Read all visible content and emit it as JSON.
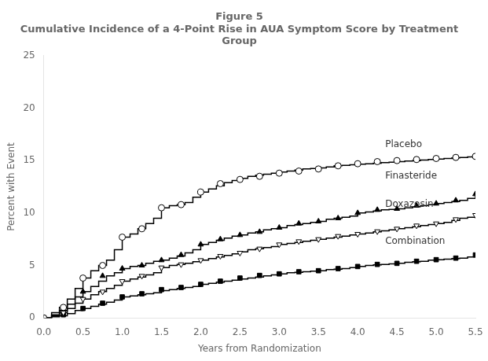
{
  "chart_data": {
    "type": "step",
    "title": "Figure 5\nCumulative Incidence of a 4-Point Rise in AUA Symptom Score by Treatment\nGroup",
    "xlabel": "Years from Randomization",
    "ylabel": "Percent with Event",
    "xlim": [
      0,
      5.5
    ],
    "ylim": [
      0,
      25
    ],
    "xticks": [
      {
        "value": 0,
        "label": "0.0"
      },
      0.5,
      {
        "value": 1,
        "label": "1.0"
      },
      1.5,
      {
        "value": 2,
        "label": "2.0"
      },
      2.5,
      {
        "value": 3,
        "label": "3.0"
      },
      3.5,
      {
        "value": 4,
        "label": "4.0"
      },
      4.5,
      {
        "value": 5,
        "label": "5.0"
      },
      5.5
    ],
    "yticks": [
      0,
      5,
      10,
      15,
      20,
      25
    ],
    "grid": false,
    "series": [
      {
        "name": "Placebo",
        "color": "#000000",
        "marker": "open circle",
        "x": [
          0.0,
          0.1,
          0.2,
          0.3,
          0.4,
          0.5,
          0.6,
          0.7,
          0.8,
          0.9,
          1.0,
          1.1,
          1.2,
          1.3,
          1.4,
          1.5,
          1.6,
          1.7,
          1.8,
          1.9,
          2.0,
          2.1,
          2.2,
          2.3,
          2.4,
          2.5,
          2.6,
          2.7,
          2.8,
          2.9,
          3.0,
          3.1,
          3.2,
          3.3,
          3.4,
          3.5,
          3.6,
          3.7,
          3.8,
          3.9,
          4.0,
          4.1,
          4.2,
          4.3,
          4.4,
          4.5,
          4.6,
          4.7,
          4.8,
          4.9,
          5.0,
          5.1,
          5.2,
          5.3,
          5.4,
          5.5
        ],
        "values": [
          0.0,
          0.5,
          1.0,
          1.8,
          2.8,
          3.8,
          4.5,
          5.0,
          5.5,
          6.5,
          7.7,
          8.0,
          8.5,
          9.0,
          9.5,
          10.5,
          10.7,
          10.8,
          11.0,
          11.5,
          12.0,
          12.3,
          12.6,
          12.9,
          13.1,
          13.3,
          13.5,
          13.6,
          13.7,
          13.8,
          13.9,
          14.0,
          14.1,
          14.2,
          14.25,
          14.3,
          14.4,
          14.5,
          14.55,
          14.6,
          14.65,
          14.7,
          14.75,
          14.8,
          14.85,
          14.9,
          14.95,
          15.0,
          15.05,
          15.1,
          15.15,
          15.2,
          15.25,
          15.3,
          15.35,
          15.4
        ],
        "marker_x": [
          0.0,
          0.25,
          0.5,
          0.75,
          1.0,
          1.25,
          1.5,
          1.75,
          2.0,
          2.25,
          2.5,
          2.75,
          3.0,
          3.25,
          3.5,
          3.75,
          4.0,
          4.25,
          4.5,
          4.75,
          5.0,
          5.25,
          5.5
        ],
        "marker_values": [
          0.0,
          1.0,
          3.8,
          5.0,
          7.7,
          8.5,
          10.5,
          10.8,
          12.0,
          12.8,
          13.2,
          13.5,
          13.8,
          14.0,
          14.2,
          14.5,
          14.7,
          14.9,
          15.0,
          15.1,
          15.2,
          15.3,
          15.4
        ]
      },
      {
        "name": "Finasteride",
        "color": "#000000",
        "marker": "filled triangle",
        "x": [
          0.0,
          0.1,
          0.2,
          0.3,
          0.4,
          0.5,
          0.6,
          0.7,
          0.8,
          0.9,
          1.0,
          1.1,
          1.2,
          1.3,
          1.4,
          1.5,
          1.6,
          1.7,
          1.8,
          1.9,
          2.0,
          2.1,
          2.2,
          2.3,
          2.4,
          2.5,
          2.6,
          2.7,
          2.8,
          2.9,
          3.0,
          3.1,
          3.2,
          3.3,
          3.4,
          3.5,
          3.6,
          3.7,
          3.8,
          3.9,
          4.0,
          4.1,
          4.2,
          4.3,
          4.4,
          4.5,
          4.6,
          4.7,
          4.8,
          4.9,
          5.0,
          5.1,
          5.2,
          5.3,
          5.4,
          5.5
        ],
        "values": [
          0.0,
          0.3,
          0.7,
          1.3,
          2.0,
          2.5,
          3.0,
          3.5,
          4.0,
          4.3,
          4.7,
          4.9,
          5.0,
          5.2,
          5.4,
          5.5,
          5.7,
          5.9,
          6.2,
          6.5,
          7.0,
          7.2,
          7.4,
          7.6,
          7.8,
          7.9,
          8.1,
          8.2,
          8.4,
          8.5,
          8.6,
          8.8,
          8.9,
          9.0,
          9.1,
          9.2,
          9.4,
          9.5,
          9.6,
          9.7,
          10.0,
          10.1,
          10.2,
          10.3,
          10.35,
          10.4,
          10.5,
          10.6,
          10.7,
          10.8,
          10.9,
          11.0,
          11.1,
          11.2,
          11.4,
          11.8
        ],
        "marker_x": [
          0.0,
          0.25,
          0.5,
          0.75,
          1.0,
          1.25,
          1.5,
          1.75,
          2.0,
          2.25,
          2.5,
          2.75,
          3.0,
          3.25,
          3.5,
          3.75,
          4.0,
          4.25,
          4.5,
          4.75,
          5.0,
          5.25,
          5.5
        ],
        "marker_values": [
          0.0,
          0.8,
          2.5,
          4.0,
          4.7,
          5.0,
          5.5,
          6.0,
          7.0,
          7.5,
          7.9,
          8.2,
          8.6,
          9.0,
          9.2,
          9.5,
          10.0,
          10.3,
          10.4,
          10.7,
          10.9,
          11.2,
          11.8
        ]
      },
      {
        "name": "Doxazosin",
        "color": "#000000",
        "marker": "open triangle-down",
        "x": [
          0.0,
          0.1,
          0.2,
          0.3,
          0.4,
          0.5,
          0.6,
          0.7,
          0.8,
          0.9,
          1.0,
          1.1,
          1.2,
          1.3,
          1.4,
          1.5,
          1.6,
          1.7,
          1.8,
          1.9,
          2.0,
          2.1,
          2.2,
          2.3,
          2.4,
          2.5,
          2.6,
          2.7,
          2.8,
          2.9,
          3.0,
          3.1,
          3.2,
          3.3,
          3.4,
          3.5,
          3.6,
          3.7,
          3.8,
          3.9,
          4.0,
          4.1,
          4.2,
          4.3,
          4.4,
          4.5,
          4.6,
          4.7,
          4.8,
          4.9,
          5.0,
          5.1,
          5.2,
          5.3,
          5.4,
          5.5
        ],
        "values": [
          0.0,
          0.2,
          0.5,
          0.9,
          1.4,
          1.8,
          2.2,
          2.5,
          2.8,
          3.1,
          3.5,
          3.7,
          3.9,
          4.1,
          4.3,
          4.8,
          5.0,
          5.1,
          5.2,
          5.35,
          5.5,
          5.65,
          5.8,
          5.95,
          6.1,
          6.3,
          6.5,
          6.6,
          6.7,
          6.8,
          7.0,
          7.1,
          7.2,
          7.3,
          7.4,
          7.5,
          7.6,
          7.7,
          7.8,
          7.9,
          8.0,
          8.1,
          8.2,
          8.3,
          8.4,
          8.5,
          8.6,
          8.7,
          8.8,
          8.9,
          9.0,
          9.1,
          9.3,
          9.5,
          9.6,
          9.8
        ],
        "marker_x": [
          0.0,
          0.25,
          0.5,
          0.75,
          1.0,
          1.25,
          1.5,
          1.75,
          2.0,
          2.25,
          2.5,
          2.75,
          3.0,
          3.25,
          3.5,
          3.75,
          4.0,
          4.25,
          4.5,
          4.75,
          5.0,
          5.25,
          5.5
        ],
        "marker_values": [
          0.0,
          0.5,
          1.8,
          2.5,
          3.5,
          4.0,
          4.8,
          5.1,
          5.5,
          5.9,
          6.2,
          6.6,
          7.0,
          7.3,
          7.5,
          7.8,
          8.0,
          8.25,
          8.5,
          8.8,
          9.0,
          9.4,
          9.8
        ]
      },
      {
        "name": "Combination",
        "color": "#000000",
        "marker": "filled square",
        "x": [
          0.0,
          0.1,
          0.2,
          0.3,
          0.4,
          0.5,
          0.6,
          0.7,
          0.8,
          0.9,
          1.0,
          1.1,
          1.2,
          1.3,
          1.4,
          1.5,
          1.6,
          1.7,
          1.8,
          1.9,
          2.0,
          2.1,
          2.2,
          2.3,
          2.4,
          2.5,
          2.6,
          2.7,
          2.8,
          2.9,
          3.0,
          3.1,
          3.2,
          3.3,
          3.4,
          3.5,
          3.6,
          3.7,
          3.8,
          3.9,
          4.0,
          4.1,
          4.2,
          4.3,
          4.4,
          4.5,
          4.6,
          4.7,
          4.8,
          4.9,
          5.0,
          5.1,
          5.2,
          5.3,
          5.4,
          5.5
        ],
        "values": [
          0.0,
          0.1,
          0.2,
          0.4,
          0.7,
          0.9,
          1.1,
          1.3,
          1.5,
          1.7,
          2.0,
          2.1,
          2.2,
          2.3,
          2.4,
          2.6,
          2.7,
          2.8,
          2.9,
          3.0,
          3.2,
          3.3,
          3.4,
          3.5,
          3.6,
          3.7,
          3.8,
          3.9,
          4.0,
          4.1,
          4.2,
          4.3,
          4.35,
          4.4,
          4.45,
          4.5,
          4.6,
          4.65,
          4.7,
          4.8,
          4.9,
          5.0,
          5.05,
          5.1,
          5.15,
          5.2,
          5.3,
          5.35,
          5.4,
          5.5,
          5.55,
          5.6,
          5.65,
          5.7,
          5.8,
          6.0
        ],
        "marker_x": [
          0.0,
          0.25,
          0.5,
          0.75,
          1.0,
          1.25,
          1.5,
          1.75,
          2.0,
          2.25,
          2.5,
          2.75,
          3.0,
          3.25,
          3.5,
          3.75,
          4.0,
          4.25,
          4.5,
          4.75,
          5.0,
          5.25,
          5.5
        ],
        "marker_values": [
          0.0,
          0.3,
          0.9,
          1.4,
          2.0,
          2.3,
          2.7,
          2.9,
          3.2,
          3.5,
          3.8,
          4.05,
          4.2,
          4.4,
          4.5,
          4.7,
          4.9,
          5.1,
          5.2,
          5.4,
          5.55,
          5.7,
          6.0
        ]
      }
    ],
    "annotations": [
      {
        "text": "Placebo",
        "x": 4.35,
        "y": 16.5
      },
      {
        "text": "Finasteride",
        "x": 4.35,
        "y": 13.5
      },
      {
        "text": "Doxazosin",
        "x": 4.35,
        "y": 10.8
      },
      {
        "text": "Combination",
        "x": 4.35,
        "y": 7.3
      }
    ]
  }
}
